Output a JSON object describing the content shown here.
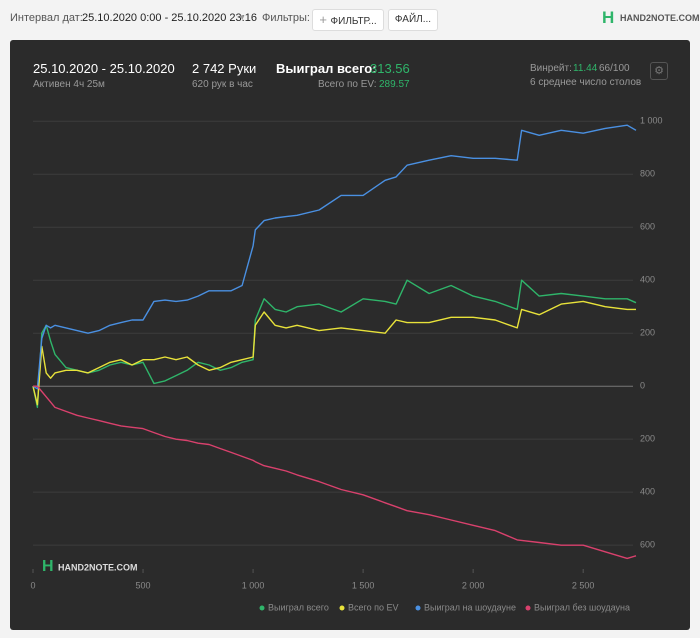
{
  "toolbar": {
    "date_label": "Интервал дат:",
    "date_range": "25.10.2020 0:00 - 25.10.2020 23:16",
    "filters_label": "Фильтры:",
    "filter_button": "ФИЛЬТР...",
    "file_button": "ФАЙЛ...",
    "logo": "HAND2NOTE.COM"
  },
  "summary": {
    "period": "25.10.2020 - 25.10.2020",
    "active": "Активен 4ч 25м",
    "hands": "2 742 Руки",
    "hands_per_hour": "620 рук в час",
    "won_label": "Выиграл всего:",
    "won_value": "313.56",
    "ev_label": "Всего по EV:",
    "ev_value": "289.57",
    "winrate_label": "Винрейт:",
    "winrate_value": "11.44",
    "winrate_unit": "66/100",
    "tables": "6 среднее число столов"
  },
  "chart_data": {
    "type": "line",
    "watermark": "HAND2NOTE.COM",
    "x": [
      0,
      20,
      40,
      60,
      80,
      100,
      150,
      200,
      250,
      300,
      350,
      400,
      450,
      500,
      550,
      600,
      650,
      700,
      750,
      800,
      850,
      900,
      950,
      1000,
      1010,
      1050,
      1100,
      1150,
      1200,
      1300,
      1400,
      1500,
      1600,
      1650,
      1700,
      1800,
      1900,
      2000,
      2100,
      2200,
      2220,
      2300,
      2400,
      2500,
      2600,
      2700,
      2740
    ],
    "series": [
      {
        "name": "Выиграл всего",
        "color": "#2fb56a",
        "values": [
          0,
          -80,
          200,
          230,
          170,
          120,
          70,
          60,
          50,
          60,
          80,
          90,
          80,
          90,
          10,
          20,
          40,
          60,
          90,
          80,
          60,
          70,
          90,
          100,
          250,
          330,
          290,
          280,
          300,
          310,
          280,
          330,
          320,
          310,
          400,
          350,
          380,
          340,
          320,
          290,
          400,
          340,
          350,
          340,
          330,
          330,
          315
        ]
      },
      {
        "name": "Всего по EV",
        "color": "#e8e23a",
        "values": [
          0,
          -70,
          150,
          50,
          30,
          50,
          60,
          60,
          50,
          70,
          90,
          100,
          80,
          100,
          100,
          110,
          100,
          110,
          80,
          60,
          70,
          90,
          100,
          110,
          230,
          280,
          230,
          220,
          230,
          210,
          220,
          210,
          200,
          250,
          240,
          240,
          260,
          260,
          250,
          220,
          290,
          270,
          310,
          320,
          300,
          290,
          290
        ]
      },
      {
        "name": "Выиграл на шоудауне",
        "color": "#4a90e2",
        "values": [
          0,
          -10,
          180,
          230,
          220,
          230,
          220,
          210,
          200,
          210,
          230,
          240,
          250,
          250,
          320,
          325,
          320,
          325,
          340,
          360,
          360,
          360,
          380,
          530,
          590,
          625,
          635,
          640,
          645,
          665,
          720,
          720,
          777,
          790,
          834,
          853,
          870,
          860,
          860,
          853,
          966,
          947,
          966,
          955,
          973,
          985,
          966
        ]
      },
      {
        "name": "Выиграл без шоудауна",
        "color": "#d9416d",
        "values": [
          0,
          0,
          -20,
          -40,
          -60,
          -80,
          -95,
          -110,
          -120,
          -130,
          -140,
          -150,
          -155,
          -160,
          -175,
          -190,
          -200,
          -205,
          -215,
          -220,
          -235,
          -250,
          -265,
          -280,
          -285,
          -300,
          -310,
          -320,
          -335,
          -360,
          -390,
          -410,
          -440,
          -455,
          -470,
          -485,
          -505,
          -525,
          -545,
          -580,
          -582,
          -590,
          -600,
          -600,
          -625,
          -650,
          -640
        ]
      }
    ],
    "xlim": [
      0,
      2740
    ],
    "xticks": [
      0,
      500,
      {
        "value": 1000,
        "label": "1 000"
      },
      {
        "value": 1500,
        "label": "1 500"
      },
      {
        "value": 2000,
        "label": "2 000"
      },
      {
        "value": 2500,
        "label": "2 500"
      }
    ],
    "ylim": [
      -690,
      1050
    ],
    "yticks": [
      {
        "value": 1000,
        "label": "1 000"
      },
      800,
      600,
      400,
      200,
      0,
      {
        "value": -200,
        "label": "200"
      },
      {
        "value": -400,
        "label": "400"
      },
      {
        "value": -600,
        "label": "600"
      }
    ],
    "grid": true,
    "legend": "bottom-right"
  }
}
